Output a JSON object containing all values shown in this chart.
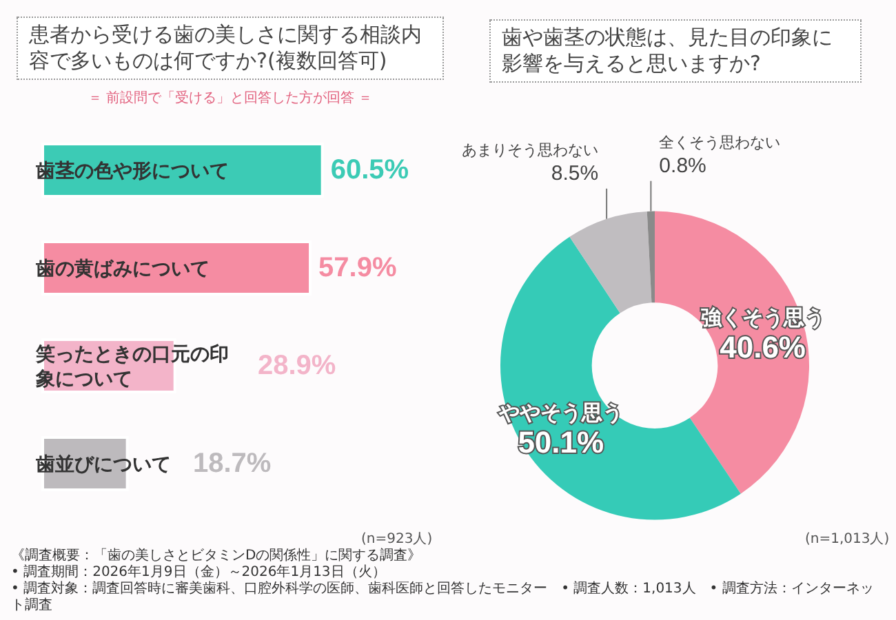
{
  "chart_data": [
    {
      "type": "bar",
      "orientation": "horizontal",
      "title": "患者から受ける歯の美しさに関する相談内容で多いものは何ですか?(複数回答可)",
      "subtitle": "＝ 前設問で「受ける」と回答した方が回答 ＝",
      "categories": [
        "歯茎の色や形について",
        "歯の黄ばみについて",
        "笑ったときの口元の印象について",
        "歯並びについて"
      ],
      "values": [
        60.5,
        57.9,
        28.9,
        18.7
      ],
      "colors": [
        "#3ccbb5",
        "#f58ca2",
        "#f3b4c9",
        "#bdbabd"
      ],
      "value_labels": [
        "60.5%",
        "57.9%",
        "28.9%",
        "18.7%"
      ],
      "annotations": [
        "(n=923人)",
        "《調査概要：「歯の美しさとビタミンDの関係性」に関する調査》",
        "• 調査期間：2026年1月9日（金）～2026年1月13日（火）",
        "• 調査対象：調査回答時に審美歯科、口腔外科学の医師、歯科医師と回答したモニター　• 調査人数：1,013人　• 調査方法：インターネット調査"
      ],
      "legend": false
    },
    {
      "type": "donut",
      "title": "歯や歯茎の状態は、見た目の印象に影響を与えると思いますか?",
      "categories": [
        "強くそう思う",
        "ややそう思う",
        "あまりそう思わない",
        "全くそう思わない"
      ],
      "values": [
        40.6,
        50.1,
        8.5,
        0.8
      ],
      "colors": [
        "#f58ca2",
        "#35cbb7",
        "#c0bdc0",
        "#8a8a8a"
      ],
      "value_labels": [
        "40.6%",
        "50.1%",
        "8.5%",
        "0.8%"
      ],
      "annotations": [
        "(n=1,013人)"
      ],
      "legend": false
    }
  ]
}
